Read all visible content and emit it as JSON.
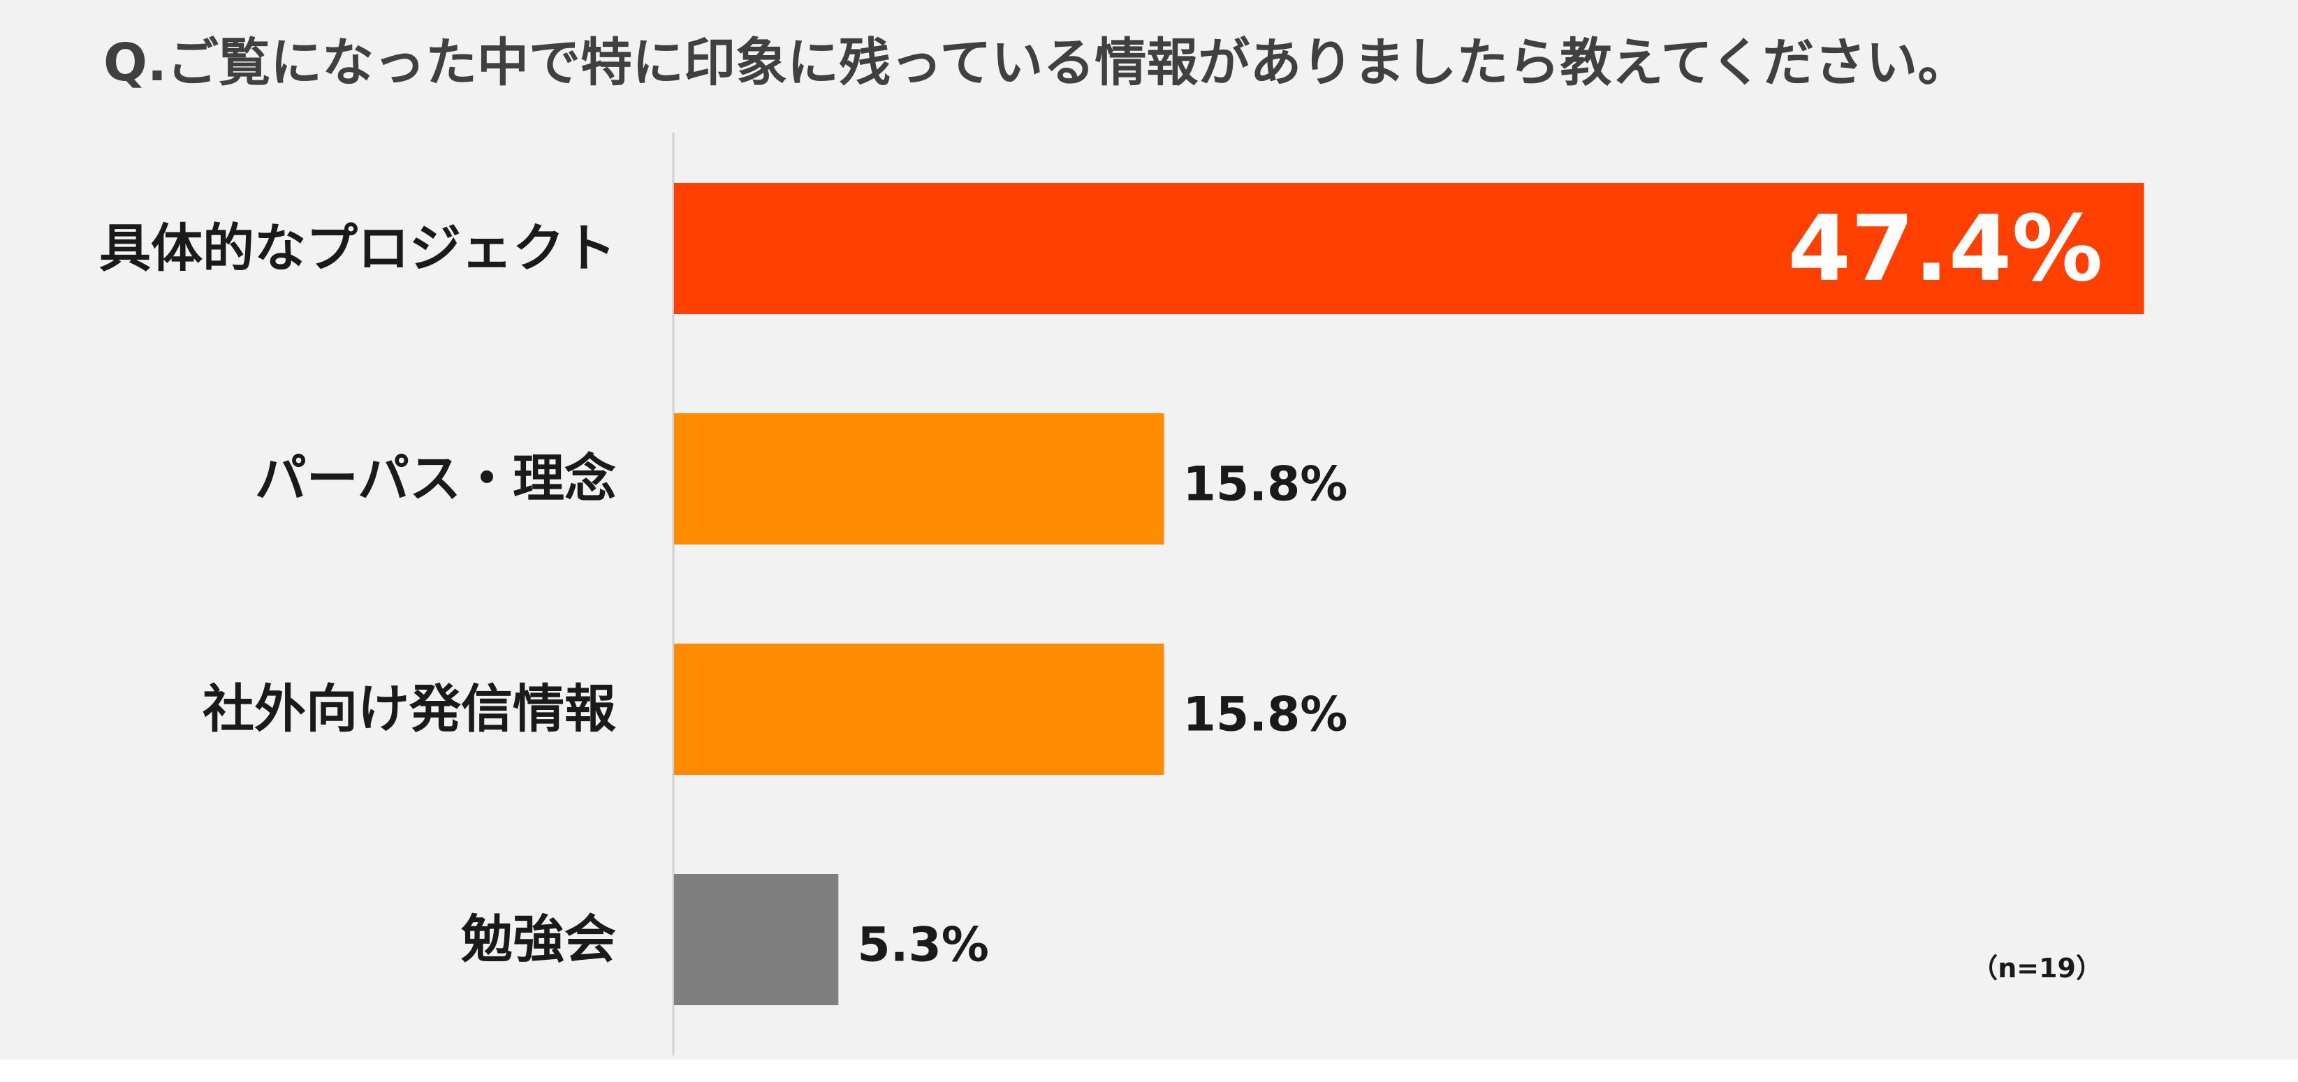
{
  "chart_data": {
    "type": "bar",
    "orientation": "horizontal",
    "title": "Q.ご覧になった中で特に印象に残っている情報がありましたら教えてください。",
    "categories": [
      "具体的なプロジェクト",
      "パーパス・理念",
      "社外向け発信情報",
      "勉強会"
    ],
    "values": [
      47.4,
      15.8,
      15.8,
      5.3
    ],
    "value_labels": [
      "47.4%",
      "15.8%",
      "15.8%",
      "5.3%"
    ],
    "unit": "%",
    "xlim": [
      0,
      50
    ],
    "note": "（n=19）",
    "grid": false,
    "colors": [
      "#ff4000",
      "#ff8c00",
      "#ff8c00",
      "#7f7f7f"
    ],
    "axis_color": "#d0d0d0"
  }
}
